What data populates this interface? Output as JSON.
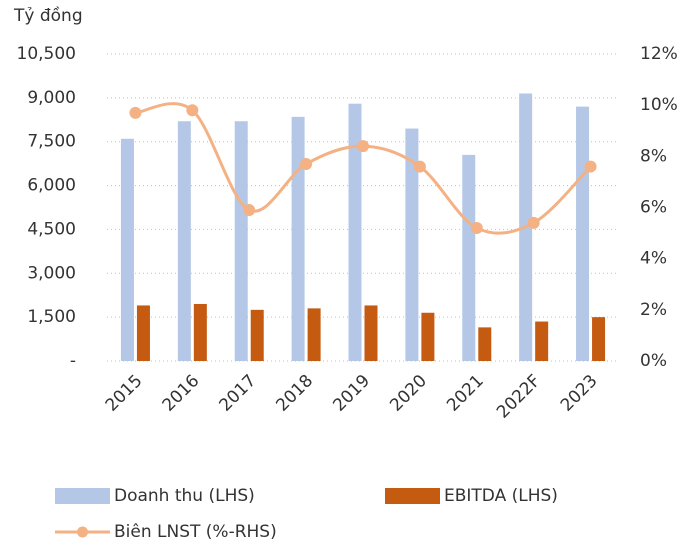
{
  "chart_data": {
    "type": "bar-line",
    "ylabel": "Tỷ đồng",
    "categories": [
      "2015",
      "2016",
      "2017",
      "2018",
      "2019",
      "2020",
      "2021",
      "2022F",
      "2023"
    ],
    "series": [
      {
        "name": "Doanh thu (LHS)",
        "color": "#b4c7e7",
        "type": "bar",
        "values": [
          7600,
          8200,
          8200,
          8350,
          8800,
          7950,
          7050,
          9150,
          8700
        ]
      },
      {
        "name": "EBITDA (LHS)",
        "color": "#c55a11",
        "type": "bar",
        "values": [
          1900,
          1950,
          1750,
          1800,
          1900,
          1650,
          1150,
          1350,
          1500
        ]
      },
      {
        "name": "Biên LNST (%-RHS)",
        "color": "#f4b183",
        "type": "line",
        "axis": "y2",
        "values": [
          9.7,
          9.8,
          5.9,
          7.7,
          8.4,
          7.6,
          5.2,
          5.4,
          7.6
        ]
      }
    ],
    "ylim": [
      0,
      10500
    ],
    "yticks": [
      {
        "value": 0,
        "label": "-"
      },
      {
        "value": 1500,
        "label": "1,500"
      },
      {
        "value": 3000,
        "label": "3,000"
      },
      {
        "value": 4500,
        "label": "4,500"
      },
      {
        "value": 6000,
        "label": "6,000"
      },
      {
        "value": 7500,
        "label": "7,500"
      },
      {
        "value": 9000,
        "label": "9,000"
      },
      {
        "value": 10500,
        "label": "10,500"
      }
    ],
    "y2lim": [
      0,
      12
    ],
    "y2ticks": [
      {
        "value": 0,
        "label": "0%"
      },
      {
        "value": 2,
        "label": "2%"
      },
      {
        "value": 4,
        "label": "4%"
      },
      {
        "value": 6,
        "label": "6%"
      },
      {
        "value": 8,
        "label": "8%"
      },
      {
        "value": 10,
        "label": "10%"
      },
      {
        "value": 12,
        "label": "12%"
      }
    ],
    "grid": true
  }
}
